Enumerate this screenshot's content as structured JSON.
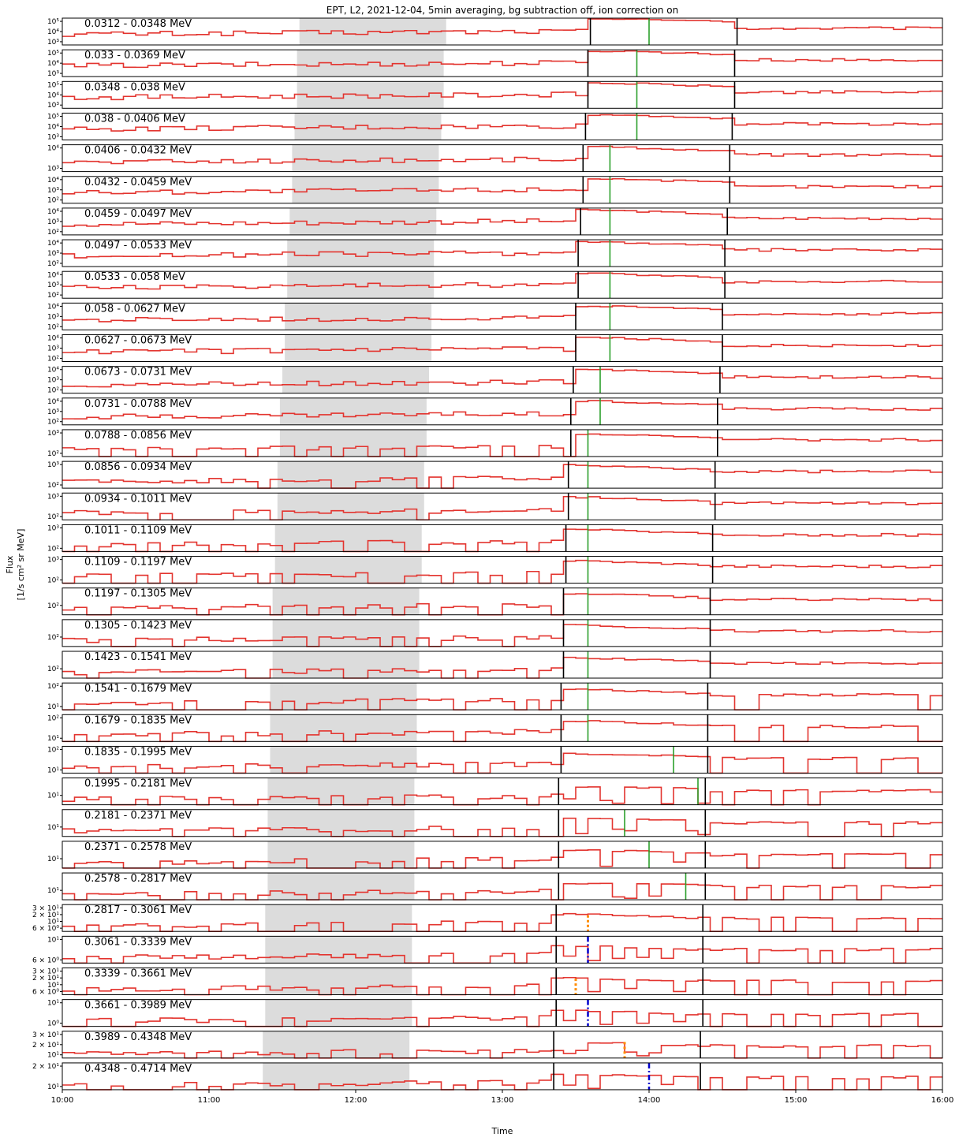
{
  "chart_data": {
    "type": "line",
    "title": "EPT, L2, 2021-12-04, 5min averaging, bg subtraction off, ion correction on",
    "xlabel": "Time",
    "ylabel": "Flux",
    "ylabel_unit": "[1/s cm² sr MeV]",
    "x_range": [
      "10:00",
      "16:00"
    ],
    "x_ticks": [
      "10:00",
      "11:00",
      "12:00",
      "13:00",
      "14:00",
      "15:00",
      "16:00"
    ],
    "grid": false,
    "series_color": "#e3342f",
    "shade_color": "#dcdcdc",
    "panels": [
      {
        "channel": "0.0312 - 0.0348 MeV",
        "yticks": [
          "10³",
          "10⁴",
          "10⁵"
        ],
        "shade": [
          "11:37",
          "12:37"
        ],
        "onset": "13:36",
        "peak": "14:00",
        "end": "14:36",
        "level": [
          0.4,
          0.95,
          0.62
        ],
        "peak_style": "green"
      },
      {
        "channel": "0.033 - 0.0369 MeV",
        "yticks": [
          "10³",
          "10⁴",
          "10⁵"
        ],
        "shade": [
          "11:36",
          "12:36"
        ],
        "onset": "13:35",
        "peak": "13:55",
        "end": "14:35",
        "level": [
          0.4,
          0.92,
          0.62
        ],
        "peak_style": "green"
      },
      {
        "channel": "0.0348 - 0.038 MeV",
        "yticks": [
          "10³",
          "10⁴",
          "10⁵"
        ],
        "shade": [
          "11:36",
          "12:36"
        ],
        "onset": "13:35",
        "peak": "13:55",
        "end": "14:35",
        "level": [
          0.4,
          0.9,
          0.6
        ],
        "peak_style": "green"
      },
      {
        "channel": "0.038 - 0.0406 MeV",
        "yticks": [
          "10³",
          "10⁴",
          "10⁵"
        ],
        "shade": [
          "11:35",
          "12:35"
        ],
        "onset": "13:34",
        "peak": "13:55",
        "end": "14:34",
        "level": [
          0.4,
          0.9,
          0.6
        ],
        "peak_style": "green"
      },
      {
        "channel": "0.0406 - 0.0432 MeV",
        "yticks": [
          "10³",
          "10⁴"
        ],
        "shade": [
          "11:34",
          "12:34"
        ],
        "onset": "13:33",
        "peak": "13:44",
        "end": "14:33",
        "level": [
          0.35,
          0.88,
          0.62
        ],
        "peak_style": "green"
      },
      {
        "channel": "0.0432 - 0.0459 MeV",
        "yticks": [
          "10²",
          "10³",
          "10⁴"
        ],
        "shade": [
          "11:34",
          "12:34"
        ],
        "onset": "13:33",
        "peak": "13:44",
        "end": "14:33",
        "level": [
          0.4,
          0.88,
          0.62
        ],
        "peak_style": "green"
      },
      {
        "channel": "0.0459 - 0.0497 MeV",
        "yticks": [
          "10²",
          "10³",
          "10⁴"
        ],
        "shade": [
          "11:33",
          "12:33"
        ],
        "onset": "13:32",
        "peak": "13:44",
        "end": "14:32",
        "level": [
          0.4,
          0.88,
          0.62
        ],
        "peak_style": "green"
      },
      {
        "channel": "0.0497 - 0.0533 MeV",
        "yticks": [
          "10²",
          "10³",
          "10⁴"
        ],
        "shade": [
          "11:32",
          "12:32"
        ],
        "onset": "13:31",
        "peak": "13:44",
        "end": "14:31",
        "level": [
          0.4,
          0.88,
          0.62
        ],
        "peak_style": "green"
      },
      {
        "channel": "0.0533 - 0.058 MeV",
        "yticks": [
          "10²",
          "10³",
          "10⁴"
        ],
        "shade": [
          "11:32",
          "12:32"
        ],
        "onset": "13:31",
        "peak": "13:44",
        "end": "14:31",
        "level": [
          0.4,
          0.88,
          0.62
        ],
        "peak_style": "green"
      },
      {
        "channel": "0.058 - 0.0627 MeV",
        "yticks": [
          "10²",
          "10³",
          "10⁴"
        ],
        "shade": [
          "11:31",
          "12:31"
        ],
        "onset": "13:30",
        "peak": "13:44",
        "end": "14:30",
        "level": [
          0.35,
          0.85,
          0.6
        ],
        "peak_style": "green"
      },
      {
        "channel": "0.0627 - 0.0673 MeV",
        "yticks": [
          "10²",
          "10³",
          "10⁴"
        ],
        "shade": [
          "11:31",
          "12:31"
        ],
        "onset": "13:30",
        "peak": "13:44",
        "end": "14:30",
        "level": [
          0.35,
          0.85,
          0.6
        ],
        "peak_style": "green"
      },
      {
        "channel": "0.0673 - 0.0731 MeV",
        "yticks": [
          "10²",
          "10³",
          "10⁴"
        ],
        "shade": [
          "11:30",
          "12:30"
        ],
        "onset": "13:29",
        "peak": "13:40",
        "end": "14:29",
        "level": [
          0.3,
          0.85,
          0.6
        ],
        "peak_style": "green"
      },
      {
        "channel": "0.0731 - 0.0788 MeV",
        "yticks": [
          "10²",
          "10³",
          "10⁴"
        ],
        "shade": [
          "11:29",
          "12:29"
        ],
        "onset": "13:28",
        "peak": "13:40",
        "end": "14:28",
        "level": [
          0.3,
          0.85,
          0.6
        ],
        "peak_style": "green"
      },
      {
        "channel": "0.0788 - 0.0856 MeV",
        "yticks": [
          "10²",
          "10³"
        ],
        "shade": [
          "11:29",
          "12:29"
        ],
        "onset": "13:28",
        "peak": "13:35",
        "end": "14:28",
        "level": [
          0.25,
          0.8,
          0.62
        ],
        "peak_style": "green"
      },
      {
        "channel": "0.0856 - 0.0934 MeV",
        "yticks": [
          "10²",
          "10³"
        ],
        "shade": [
          "11:28",
          "12:28"
        ],
        "onset": "13:27",
        "peak": "13:35",
        "end": "14:27",
        "level": [
          0.25,
          0.8,
          0.62
        ],
        "peak_style": "green"
      },
      {
        "channel": "0.0934 - 0.1011 MeV",
        "yticks": [
          "10²",
          "10³"
        ],
        "shade": [
          "11:28",
          "12:28"
        ],
        "onset": "13:27",
        "peak": "13:35",
        "end": "14:27",
        "level": [
          0.25,
          0.8,
          0.62
        ],
        "peak_style": "green"
      },
      {
        "channel": "0.1011 - 0.1109 MeV",
        "yticks": [
          "10²",
          "10³"
        ],
        "shade": [
          "11:27",
          "12:27"
        ],
        "onset": "13:26",
        "peak": "13:35",
        "end": "14:26",
        "level": [
          0.25,
          0.78,
          0.62
        ],
        "peak_style": "green"
      },
      {
        "channel": "0.1109 - 0.1197 MeV",
        "yticks": [
          "10²",
          "10³"
        ],
        "shade": [
          "11:27",
          "12:27"
        ],
        "onset": "13:26",
        "peak": "13:35",
        "end": "14:26",
        "level": [
          0.25,
          0.78,
          0.62
        ],
        "peak_style": "green"
      },
      {
        "channel": "0.1197 - 0.1305 MeV",
        "yticks": [
          "10²"
        ],
        "shade": [
          "11:26",
          "12:26"
        ],
        "onset": "13:25",
        "peak": "13:35",
        "end": "14:25",
        "level": [
          0.25,
          0.75,
          0.58
        ],
        "peak_style": "green"
      },
      {
        "channel": "0.1305 - 0.1423 MeV",
        "yticks": [
          "10²"
        ],
        "shade": [
          "11:26",
          "12:26"
        ],
        "onset": "13:25",
        "peak": "13:35",
        "end": "14:25",
        "level": [
          0.22,
          0.75,
          0.58
        ],
        "peak_style": "green"
      },
      {
        "channel": "0.1423 - 0.1541 MeV",
        "yticks": [
          "10²"
        ],
        "shade": [
          "11:26",
          "12:26"
        ],
        "onset": "13:25",
        "peak": "13:35",
        "end": "14:25",
        "level": [
          0.2,
          0.72,
          0.56
        ],
        "peak_style": "green"
      },
      {
        "channel": "0.1541 - 0.1679 MeV",
        "yticks": [
          "10¹",
          "10²"
        ],
        "shade": [
          "11:25",
          "12:25"
        ],
        "onset": "13:24",
        "peak": "13:35",
        "end": "14:24",
        "level": [
          0.25,
          0.72,
          0.56
        ],
        "peak_style": "green"
      },
      {
        "channel": "0.1679 - 0.1835 MeV",
        "yticks": [
          "10¹",
          "10²"
        ],
        "shade": [
          "11:25",
          "12:25"
        ],
        "onset": "13:24",
        "peak": "13:35",
        "end": "14:24",
        "level": [
          0.25,
          0.72,
          0.56
        ],
        "peak_style": "green"
      },
      {
        "channel": "0.1835 - 0.1995 MeV",
        "yticks": [
          "10¹",
          "10²"
        ],
        "shade": [
          "11:25",
          "12:25"
        ],
        "onset": "13:24",
        "peak": "14:10",
        "end": "14:24",
        "level": [
          0.22,
          0.7,
          0.55
        ],
        "peak_style": "green"
      },
      {
        "channel": "0.1995 - 0.2181 MeV",
        "yticks": [
          "10¹"
        ],
        "shade": [
          "11:24",
          "12:24"
        ],
        "onset": "13:23",
        "peak": "14:20",
        "end": "14:23",
        "level": [
          0.2,
          0.68,
          0.52
        ],
        "peak_style": "green"
      },
      {
        "channel": "0.2181 - 0.2371 MeV",
        "yticks": [
          "10¹"
        ],
        "shade": [
          "11:24",
          "12:24"
        ],
        "onset": "13:23",
        "peak": "13:50",
        "end": "14:23",
        "level": [
          0.2,
          0.65,
          0.5
        ],
        "peak_style": "green"
      },
      {
        "channel": "0.2371 - 0.2578 MeV",
        "yticks": [
          "10¹"
        ],
        "shade": [
          "11:24",
          "12:24"
        ],
        "onset": "13:23",
        "peak": "14:00",
        "end": "14:23",
        "level": [
          0.2,
          0.65,
          0.5
        ],
        "peak_style": "green"
      },
      {
        "channel": "0.2578 - 0.2817 MeV",
        "yticks": [
          "10¹"
        ],
        "shade": [
          "11:24",
          "12:24"
        ],
        "onset": "13:23",
        "peak": "14:15",
        "end": "14:23",
        "level": [
          0.2,
          0.62,
          0.5
        ],
        "peak_style": "green"
      },
      {
        "channel": "0.2817 - 0.3061 MeV",
        "yticks": [
          "6 × 10⁰",
          "10¹",
          "2 × 10¹",
          "3 × 10¹"
        ],
        "shade": [
          "11:23",
          "12:23"
        ],
        "onset": "13:22",
        "peak": "13:35",
        "end": "14:22",
        "level": [
          0.2,
          0.6,
          0.5
        ],
        "peak_style": "orange"
      },
      {
        "channel": "0.3061 - 0.3339 MeV",
        "yticks": [
          "6 × 10⁰",
          "10¹"
        ],
        "shade": [
          "11:23",
          "12:23"
        ],
        "onset": "13:22",
        "peak": "13:35",
        "end": "14:22",
        "level": [
          0.2,
          0.6,
          0.5
        ],
        "peak_style": "blue"
      },
      {
        "channel": "0.3339 - 0.3661 MeV",
        "yticks": [
          "6 × 10⁰",
          "10¹",
          "2 × 10¹",
          "3 × 10¹"
        ],
        "shade": [
          "11:23",
          "12:23"
        ],
        "onset": "13:22",
        "peak": "13:30",
        "end": "14:22",
        "level": [
          0.2,
          0.6,
          0.5
        ],
        "peak_style": "orange"
      },
      {
        "channel": "0.3661 - 0.3989 MeV",
        "yticks": [
          "10⁰",
          "10¹"
        ],
        "shade": [
          "11:23",
          "12:23"
        ],
        "onset": "13:22",
        "peak": "13:35",
        "end": "14:22",
        "level": [
          0.2,
          0.55,
          0.45
        ],
        "peak_style": "blue"
      },
      {
        "channel": "0.3989 - 0.4348 MeV",
        "yticks": [
          "10¹",
          "2 × 10¹",
          "3 × 10¹"
        ],
        "shade": [
          "11:22",
          "12:22"
        ],
        "onset": "13:21",
        "peak": "13:50",
        "end": "14:21",
        "level": [
          0.15,
          0.55,
          0.45
        ],
        "peak_style": "orange"
      },
      {
        "channel": "0.4348 - 0.4714 MeV",
        "yticks": [
          "10¹",
          "2 × 10¹"
        ],
        "shade": [
          "11:22",
          "12:22"
        ],
        "onset": "13:21",
        "peak": "14:00",
        "end": "14:21",
        "level": [
          0.15,
          0.55,
          0.45
        ],
        "peak_style": "blue"
      }
    ]
  }
}
